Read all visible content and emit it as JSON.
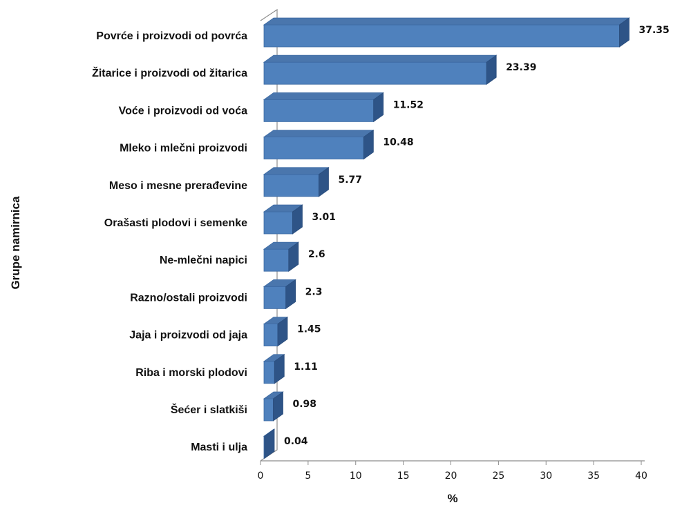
{
  "chart_data": {
    "type": "bar",
    "orientation": "horizontal",
    "three_d": true,
    "categories": [
      "Povrće i proizvodi od povrća",
      "Žitarice i proizvodi od žitarica",
      "Voće i proizvodi od voća",
      "Mleko i mlečni proizvodi",
      "Meso i mesne prerađevine",
      "Orašasti plodovi i semenke",
      "Ne-mlečni napici",
      "Razno/ostali proizvodi",
      "Jaja i proizvodi od jaja",
      "Riba i morski plodovi",
      "Šećer i slatkiši",
      "Masti i ulja"
    ],
    "values": [
      37.35,
      23.39,
      11.52,
      10.48,
      5.77,
      3.01,
      2.6,
      2.3,
      1.45,
      1.11,
      0.98,
      0.04
    ],
    "value_labels": [
      "37.35",
      "23.39",
      "11.52",
      "10.48",
      "5.77",
      "3.01",
      "2.6",
      "2.3",
      "1.45",
      "1.11",
      "0.98",
      "0.04"
    ],
    "title": "",
    "xlabel": "%",
    "ylabel": "Grupe namirnica",
    "xlim": [
      0,
      40
    ],
    "xticks": [
      0,
      5,
      10,
      15,
      20,
      25,
      30,
      35,
      40
    ],
    "grid": false,
    "legend": "none",
    "colors": {
      "bar_front": "#4f81bd",
      "bar_top": "#4a76ad",
      "bar_side": "#2e5487",
      "axis": "#8c8c8c"
    }
  }
}
